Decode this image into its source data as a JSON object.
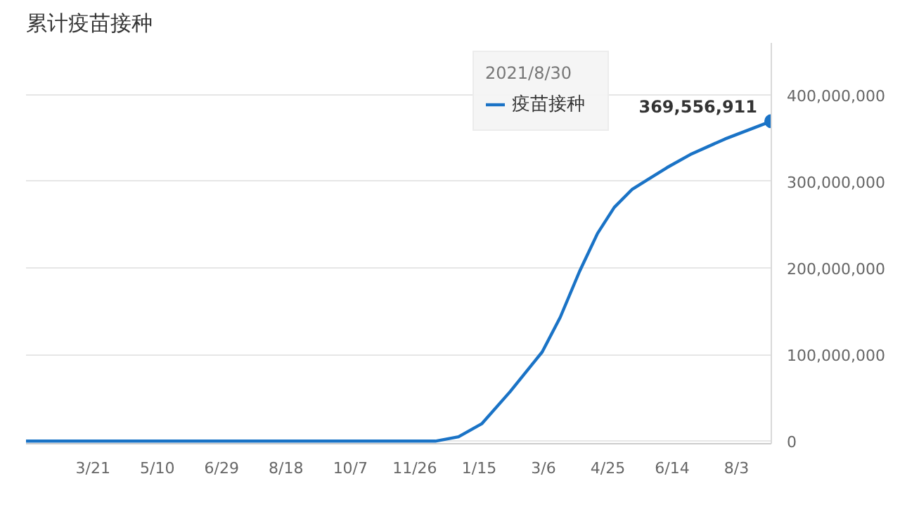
{
  "chart_data": {
    "type": "line",
    "title": "累计疫苗接种",
    "x": [
      "2020-01-29",
      "2020-12-12",
      "2020-12-30",
      "2021-01-17",
      "2021-02-08",
      "2021-03-05",
      "2021-03-19",
      "2021-04-03",
      "2021-04-17",
      "2021-04-30",
      "2021-05-14",
      "2021-06-10",
      "2021-06-28",
      "2021-07-25",
      "2021-08-30"
    ],
    "series": [
      {
        "name": "疫苗接种",
        "color": "#1a73c6",
        "values": [
          0,
          0,
          5000000,
          20000000,
          57000000,
          103000000,
          143000000,
          196000000,
          240000000,
          270000000,
          291000000,
          316000000,
          331000000,
          349000000,
          369556911
        ],
        "value_labels": [
          null,
          null,
          null,
          null,
          null,
          null,
          null,
          null,
          null,
          null,
          null,
          null,
          null,
          null,
          "369,556,911"
        ]
      }
    ],
    "xlim": [
      "2020-01-29",
      "2021-08-30"
    ],
    "xticks": [
      {
        "value": "2020-03-21",
        "label": "3/21"
      },
      {
        "value": "2020-05-10",
        "label": "5/10"
      },
      {
        "value": "2020-06-29",
        "label": "6/29"
      },
      {
        "value": "2020-08-18",
        "label": "8/18"
      },
      {
        "value": "2020-10-07",
        "label": "10/7"
      },
      {
        "value": "2020-11-26",
        "label": "11/26"
      },
      {
        "value": "2021-01-15",
        "label": "1/15"
      },
      {
        "value": "2021-03-06",
        "label": "3/6"
      },
      {
        "value": "2021-04-25",
        "label": "4/25"
      },
      {
        "value": "2021-06-14",
        "label": "6/14"
      },
      {
        "value": "2021-08-03",
        "label": "8/3"
      }
    ],
    "ylim": [
      -3000000,
      460000000
    ],
    "yticks": [
      {
        "value": 0,
        "label": "0"
      },
      {
        "value": 100000000,
        "label": "100,000,000"
      },
      {
        "value": 200000000,
        "label": "200,000,000"
      },
      {
        "value": 300000000,
        "label": "300,000,000"
      },
      {
        "value": 400000000,
        "label": "400,000,000"
      }
    ],
    "grid": "y",
    "legend": "top right",
    "marker": "none",
    "line_style": "solid",
    "annotations": [
      "2021/8/30"
    ]
  }
}
